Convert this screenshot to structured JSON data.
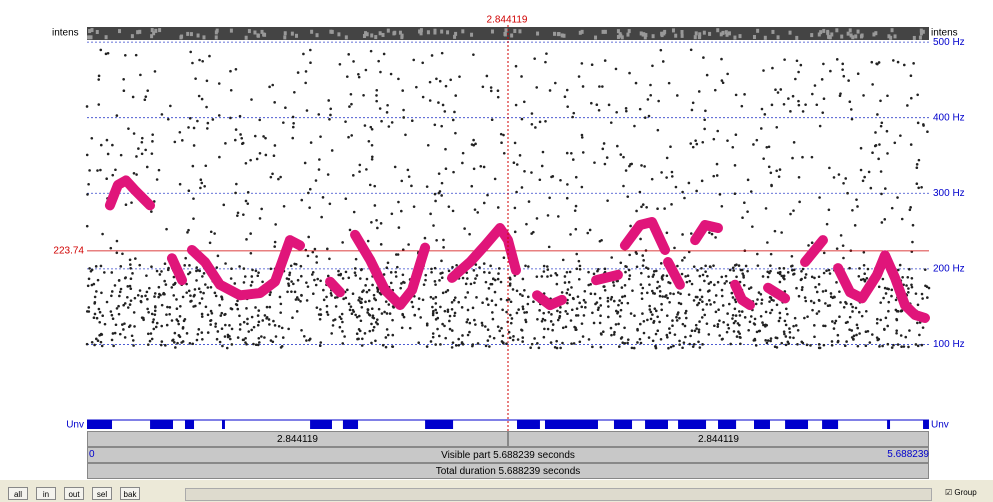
{
  "header": {
    "cursor_time": "2.844119",
    "intens_left": "intens",
    "intens_right": "intens"
  },
  "axis": {
    "xlim": [
      0,
      5.688239
    ],
    "ylim": [
      0,
      520
    ],
    "cursor": 2.844119,
    "yticks": [
      {
        "value": 100,
        "label": "100 Hz"
      },
      {
        "value": 200,
        "label": "200 Hz"
      },
      {
        "value": 300,
        "label": "300 Hz"
      },
      {
        "value": 400,
        "label": "400 Hz"
      },
      {
        "value": 500,
        "label": "500 Hz"
      }
    ],
    "cursor_hz": {
      "value": 223.74,
      "label": "223.74"
    }
  },
  "pitch": {
    "segments": [
      {
        "t": [
          0.155,
          0.209,
          0.263,
          0.324,
          0.426
        ],
        "hz": [
          284,
          311,
          317,
          304,
          284
        ]
      },
      {
        "t": [
          0.574,
          0.642
        ],
        "hz": [
          214,
          185
        ]
      },
      {
        "t": [
          0.709,
          0.797,
          0.898,
          1.034,
          1.169,
          1.27,
          1.371,
          1.439
        ],
        "hz": [
          225,
          209,
          179,
          165,
          168,
          183,
          238,
          231
        ]
      },
      {
        "t": [
          1.642,
          1.709
        ],
        "hz": [
          183,
          169
        ]
      },
      {
        "t": [
          1.811,
          1.912,
          2.013,
          2.115,
          2.196,
          2.284
        ],
        "hz": [
          245,
          212,
          172,
          152,
          172,
          228
        ]
      },
      {
        "t": [
          2.466,
          2.588,
          2.689,
          2.79,
          2.844,
          2.898
        ],
        "hz": [
          188,
          209,
          231,
          254,
          238,
          198
        ]
      },
      {
        "t": [
          3.04,
          3.128,
          3.209
        ],
        "hz": [
          165,
          152,
          159
        ]
      },
      {
        "t": [
          3.439,
          3.587
        ],
        "hz": [
          185,
          192
        ]
      },
      {
        "t": [
          3.634,
          3.736,
          3.817,
          3.905
        ],
        "hz": [
          231,
          258,
          262,
          225
        ]
      },
      {
        "t": [
          3.925,
          4.006
        ],
        "hz": [
          209,
          179
        ]
      },
      {
        "t": [
          4.108,
          4.175,
          4.263
        ],
        "hz": [
          238,
          258,
          254
        ]
      },
      {
        "t": [
          4.378,
          4.425,
          4.479
        ],
        "hz": [
          179,
          159,
          152
        ]
      },
      {
        "t": [
          4.601,
          4.716
        ],
        "hz": [
          175,
          161
        ]
      },
      {
        "t": [
          4.851,
          4.918,
          4.972
        ],
        "hz": [
          209,
          225,
          238
        ]
      },
      {
        "t": [
          5.074,
          5.155,
          5.236,
          5.337,
          5.391,
          5.459,
          5.526,
          5.594,
          5.661
        ],
        "hz": [
          201,
          169,
          161,
          192,
          218,
          188,
          152,
          139,
          135
        ]
      }
    ]
  },
  "voicing": {
    "label_left": "Unv",
    "label_right": "Unv",
    "intervals": [
      [
        0,
        0.169
      ],
      [
        0.426,
        0.581
      ],
      [
        0.662,
        0.723
      ],
      [
        0.912,
        0.932
      ],
      [
        1.507,
        1.655
      ],
      [
        1.729,
        1.831
      ],
      [
        2.284,
        2.473
      ],
      [
        2.905,
        3.06
      ],
      [
        3.094,
        3.452
      ],
      [
        3.56,
        3.682
      ],
      [
        3.77,
        3.925
      ],
      [
        3.993,
        4.182
      ],
      [
        4.263,
        4.385
      ],
      [
        4.506,
        4.614
      ],
      [
        4.716,
        4.871
      ],
      [
        4.966,
        5.074
      ],
      [
        5.405,
        5.425
      ],
      [
        5.648,
        5.688
      ]
    ]
  },
  "bars": {
    "left": "2.844119",
    "right": "2.844119",
    "visible_start": "0",
    "visible": "Visible part 5.688239 seconds",
    "visible_end": "5.688239",
    "total": "Total duration 5.688239 seconds"
  },
  "toolbar": {
    "buttons": [
      "all",
      "in",
      "out",
      "sel",
      "bak"
    ],
    "group": "Group"
  }
}
